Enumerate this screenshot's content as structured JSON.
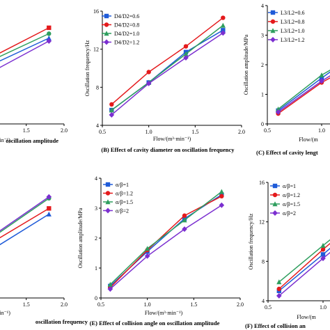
{
  "chart_data": [
    {
      "id": "A",
      "type": "line",
      "title": "",
      "caption": "oscillation amplitude",
      "xlabel": "min⁻¹)",
      "ylabel": "",
      "xticks": [
        "1.5",
        "2.0"
      ],
      "yticks": [],
      "xlim": [
        0.6,
        2.0
      ],
      "ylim": [
        0,
        4
      ],
      "series": [
        {
          "name": "",
          "color": "#e41a1c",
          "x": [
            0.6,
            1.0,
            1.8
          ],
          "y": [
            1.6,
            2.2,
            3.25
          ]
        },
        {
          "name": "",
          "color": "#2e9e5e",
          "x": [
            0.6,
            1.0,
            1.8
          ],
          "y": [
            1.5,
            2.1,
            3.05
          ]
        },
        {
          "name": "",
          "color": "#1f5bd8",
          "x": [
            0.6,
            1.0,
            1.8
          ],
          "y": [
            1.4,
            1.95,
            2.9
          ]
        },
        {
          "name": "",
          "color": "#7b2fd0",
          "x": [
            0.6,
            1.0,
            1.8
          ],
          "y": [
            1.25,
            1.7,
            2.8
          ]
        }
      ]
    },
    {
      "id": "B",
      "type": "line",
      "title": "",
      "caption": "(B) Effect of cavity diameter on oscillation frequency",
      "xlabel": "Flow/(m³·min⁻¹)",
      "ylabel": "Oscillation frequency/Hz",
      "xticks": [
        "0.5",
        "1.0",
        "1.5",
        "2.0"
      ],
      "yticks": [
        "4",
        "8",
        "12",
        "16"
      ],
      "xlim": [
        0.5,
        2.0
      ],
      "ylim": [
        4,
        16
      ],
      "series": [
        {
          "name": "D4/D2=0.6",
          "color": "#1f5bd8",
          "x": [
            0.6,
            1.0,
            1.4,
            1.8
          ],
          "y": [
            5.6,
            8.5,
            11.7,
            14.0
          ]
        },
        {
          "name": "D4/D2=0.8",
          "color": "#e41a1c",
          "x": [
            0.6,
            1.0,
            1.4,
            1.8
          ],
          "y": [
            6.2,
            9.6,
            12.3,
            15.3
          ]
        },
        {
          "name": "D4/D2=1.0",
          "color": "#2e9e5e",
          "x": [
            0.6,
            1.0,
            1.4,
            1.8
          ],
          "y": [
            5.6,
            8.5,
            11.5,
            14.5
          ]
        },
        {
          "name": "D4/D2=1.2",
          "color": "#7b2fd0",
          "x": [
            0.6,
            1.0,
            1.4,
            1.8
          ],
          "y": [
            5.1,
            8.4,
            11.1,
            13.7
          ]
        }
      ]
    },
    {
      "id": "C",
      "type": "line",
      "title": "",
      "caption": "(C) Effect of cavity lengt",
      "xlabel": "Flow/(m",
      "ylabel": "Oscillation amplitude/MPa",
      "xticks": [
        "0.5",
        "1.0"
      ],
      "yticks": [
        "0",
        "1",
        "2",
        "3",
        "4"
      ],
      "xlim": [
        0.5,
        1.5
      ],
      "ylim": [
        0,
        4
      ],
      "series": [
        {
          "name": "L3/L2=0.6",
          "color": "#1f5bd8",
          "x": [
            0.6,
            1.0,
            1.4
          ],
          "y": [
            0.45,
            1.55,
            2.6
          ]
        },
        {
          "name": "L3/L2=0.8",
          "color": "#e41a1c",
          "x": [
            0.6,
            1.0,
            1.4
          ],
          "y": [
            0.35,
            1.4,
            2.2
          ]
        },
        {
          "name": "L3/L2=1.0",
          "color": "#2e9e5e",
          "x": [
            0.6,
            1.0,
            1.4
          ],
          "y": [
            0.5,
            1.65,
            2.5
          ]
        },
        {
          "name": "L3/L2=1.2",
          "color": "#7b2fd0",
          "x": [
            0.6,
            1.0,
            1.4
          ],
          "y": [
            0.4,
            1.45,
            2.35
          ]
        }
      ]
    },
    {
      "id": "D",
      "type": "line",
      "title": "",
      "caption": "oscillation frequency",
      "xlabel": "min⁻¹)",
      "ylabel": "",
      "xticks": [
        "1.5",
        "2.0"
      ],
      "yticks": [],
      "xlim": [
        0.6,
        2.0
      ],
      "ylim": [
        0,
        4
      ],
      "series": [
        {
          "name": "",
          "color": "#e41a1c",
          "x": [
            0.6,
            1.0,
            1.8
          ],
          "y": [
            1.55,
            1.85,
            3.1
          ]
        },
        {
          "name": "",
          "color": "#2e9e5e",
          "x": [
            0.6,
            1.0,
            1.8
          ],
          "y": [
            1.5,
            2.0,
            3.45
          ]
        },
        {
          "name": "",
          "color": "#1f5bd8",
          "x": [
            0.6,
            1.0,
            1.8
          ],
          "y": [
            1.2,
            1.6,
            2.9
          ]
        },
        {
          "name": "",
          "color": "#7b2fd0",
          "x": [
            0.6,
            1.0,
            1.8
          ],
          "y": [
            1.45,
            2.05,
            3.5
          ]
        }
      ]
    },
    {
      "id": "E",
      "type": "line",
      "title": "",
      "caption": "(E) Effect of collision angle on oscillation amplitude",
      "xlabel": "Flow/(m³·min⁻¹)",
      "ylabel": "Oscillation amplitude/MPa",
      "xticks": [
        "0.5",
        "1.0",
        "1.5",
        "2.0"
      ],
      "yticks": [
        "0",
        "1",
        "2",
        "3",
        "4"
      ],
      "xlim": [
        0.5,
        2.0
      ],
      "ylim": [
        0,
        4
      ],
      "series": [
        {
          "name": "α/β=1",
          "color": "#1f5bd8",
          "x": [
            0.6,
            1.0,
            1.4,
            1.8
          ],
          "y": [
            0.4,
            1.55,
            2.65,
            3.45
          ]
        },
        {
          "name": "α/β=1.2",
          "color": "#e41a1c",
          "x": [
            0.6,
            1.0,
            1.4,
            1.8
          ],
          "y": [
            0.35,
            1.6,
            2.75,
            3.4
          ]
        },
        {
          "name": "α/β=1.5",
          "color": "#2e9e5e",
          "x": [
            0.6,
            1.0,
            1.4,
            1.8
          ],
          "y": [
            0.45,
            1.65,
            2.6,
            3.55
          ]
        },
        {
          "name": "α/β=2",
          "color": "#7b2fd0",
          "x": [
            0.6,
            1.0,
            1.4,
            1.8
          ],
          "y": [
            0.3,
            1.4,
            2.3,
            3.1
          ]
        }
      ]
    },
    {
      "id": "F",
      "type": "line",
      "title": "",
      "caption": "(F) Effect of collision an",
      "xlabel": "Flow/(m",
      "ylabel": "Oscillation frequency/Hz",
      "xticks": [
        "0.5",
        "1.0"
      ],
      "yticks": [
        "4",
        "8",
        "12",
        "16"
      ],
      "xlim": [
        0.5,
        1.5
      ],
      "ylim": [
        4,
        16
      ],
      "series": [
        {
          "name": "α/β=1",
          "color": "#1f5bd8",
          "x": [
            0.6,
            1.0,
            1.4
          ],
          "y": [
            5.0,
            8.7,
            12.5
          ]
        },
        {
          "name": "α/β=1.2",
          "color": "#e41a1c",
          "x": [
            0.6,
            1.0,
            1.4
          ],
          "y": [
            5.2,
            9.2,
            13.0
          ]
        },
        {
          "name": "α/β=1.5",
          "color": "#2e9e5e",
          "x": [
            0.6,
            1.0,
            1.4
          ],
          "y": [
            5.9,
            9.6,
            13.2
          ]
        },
        {
          "name": "α/β=2",
          "color": "#7b2fd0",
          "x": [
            0.6,
            1.0,
            1.4
          ],
          "y": [
            4.5,
            8.3,
            12.0
          ]
        }
      ]
    }
  ]
}
